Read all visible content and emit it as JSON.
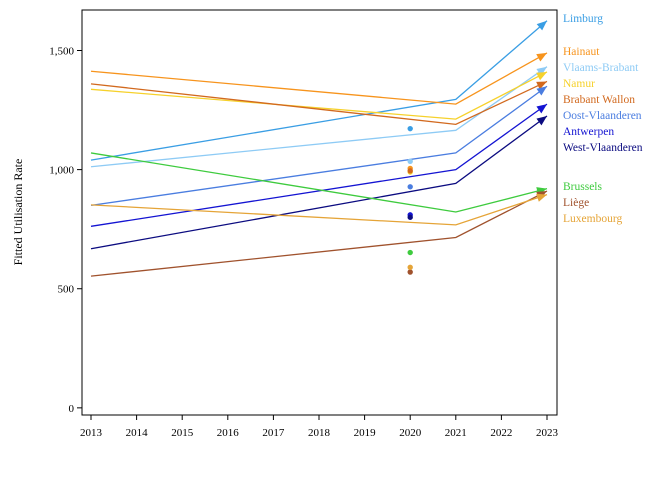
{
  "chart_data": {
    "type": "line",
    "title": "",
    "xlabel": "",
    "ylabel": "Fitted Utilisation Rate",
    "x_ticks": [
      "2013",
      "2014",
      "2015",
      "2016",
      "2017",
      "2018",
      "2019",
      "2020",
      "2021",
      "2022",
      "2023"
    ],
    "y_ticks": [
      "0",
      "500",
      "1,000",
      "1,500"
    ],
    "xlim": [
      2012.7,
      2023.2
    ],
    "ylim": [
      -30,
      1670
    ],
    "grid": false,
    "legend_placement": "right, labels at line ends",
    "series": [
      {
        "name": "Limburg",
        "color": "#3a9ee4",
        "x": [
          2013,
          2021,
          2023
        ],
        "y": [
          1040,
          1295,
          1625
        ],
        "obs_2020": 1172
      },
      {
        "name": "Hainaut",
        "color": "#f7941d",
        "x": [
          2013,
          2021,
          2023
        ],
        "y": [
          1413,
          1275,
          1490
        ],
        "obs_2020": 1005
      },
      {
        "name": "Vlaams-Brabant",
        "color": "#8ecbf5",
        "x": [
          2013,
          2021,
          2023
        ],
        "y": [
          1012,
          1165,
          1432
        ],
        "obs_2020": 1035
      },
      {
        "name": "Namur",
        "color": "#f6d12b",
        "x": [
          2013,
          2021,
          2023
        ],
        "y": [
          1337,
          1212,
          1410
        ],
        "obs_2020": 990
      },
      {
        "name": "Brabant Wallon",
        "color": "#d2691e",
        "x": [
          2013,
          2021,
          2023
        ],
        "y": [
          1360,
          1190,
          1370
        ],
        "obs_2020": 995
      },
      {
        "name": "Oost-Vlaanderen",
        "color": "#4a7de0",
        "x": [
          2013,
          2021,
          2023
        ],
        "y": [
          850,
          1070,
          1350
        ],
        "obs_2020": 928
      },
      {
        "name": "Antwerpen",
        "color": "#1414d2",
        "x": [
          2013,
          2021,
          2023
        ],
        "y": [
          762,
          1000,
          1275
        ],
        "obs_2020": 810
      },
      {
        "name": "West-Vlaanderen",
        "color": "#0b0b80",
        "x": [
          2013,
          2021,
          2023
        ],
        "y": [
          668,
          942,
          1225
        ],
        "obs_2020": 800
      },
      {
        "name": "Brussels",
        "color": "#3ecb3e",
        "x": [
          2013,
          2021,
          2023
        ],
        "y": [
          1070,
          822,
          920
        ],
        "obs_2020": 652
      },
      {
        "name": "Liège",
        "color": "#a0522d",
        "x": [
          2013,
          2021,
          2023
        ],
        "y": [
          553,
          715,
          910
        ],
        "obs_2020": 570
      },
      {
        "name": "Luxembourg",
        "color": "#e5a437",
        "x": [
          2013,
          2021,
          2023
        ],
        "y": [
          852,
          768,
          895
        ],
        "obs_2020": 590
      }
    ]
  }
}
